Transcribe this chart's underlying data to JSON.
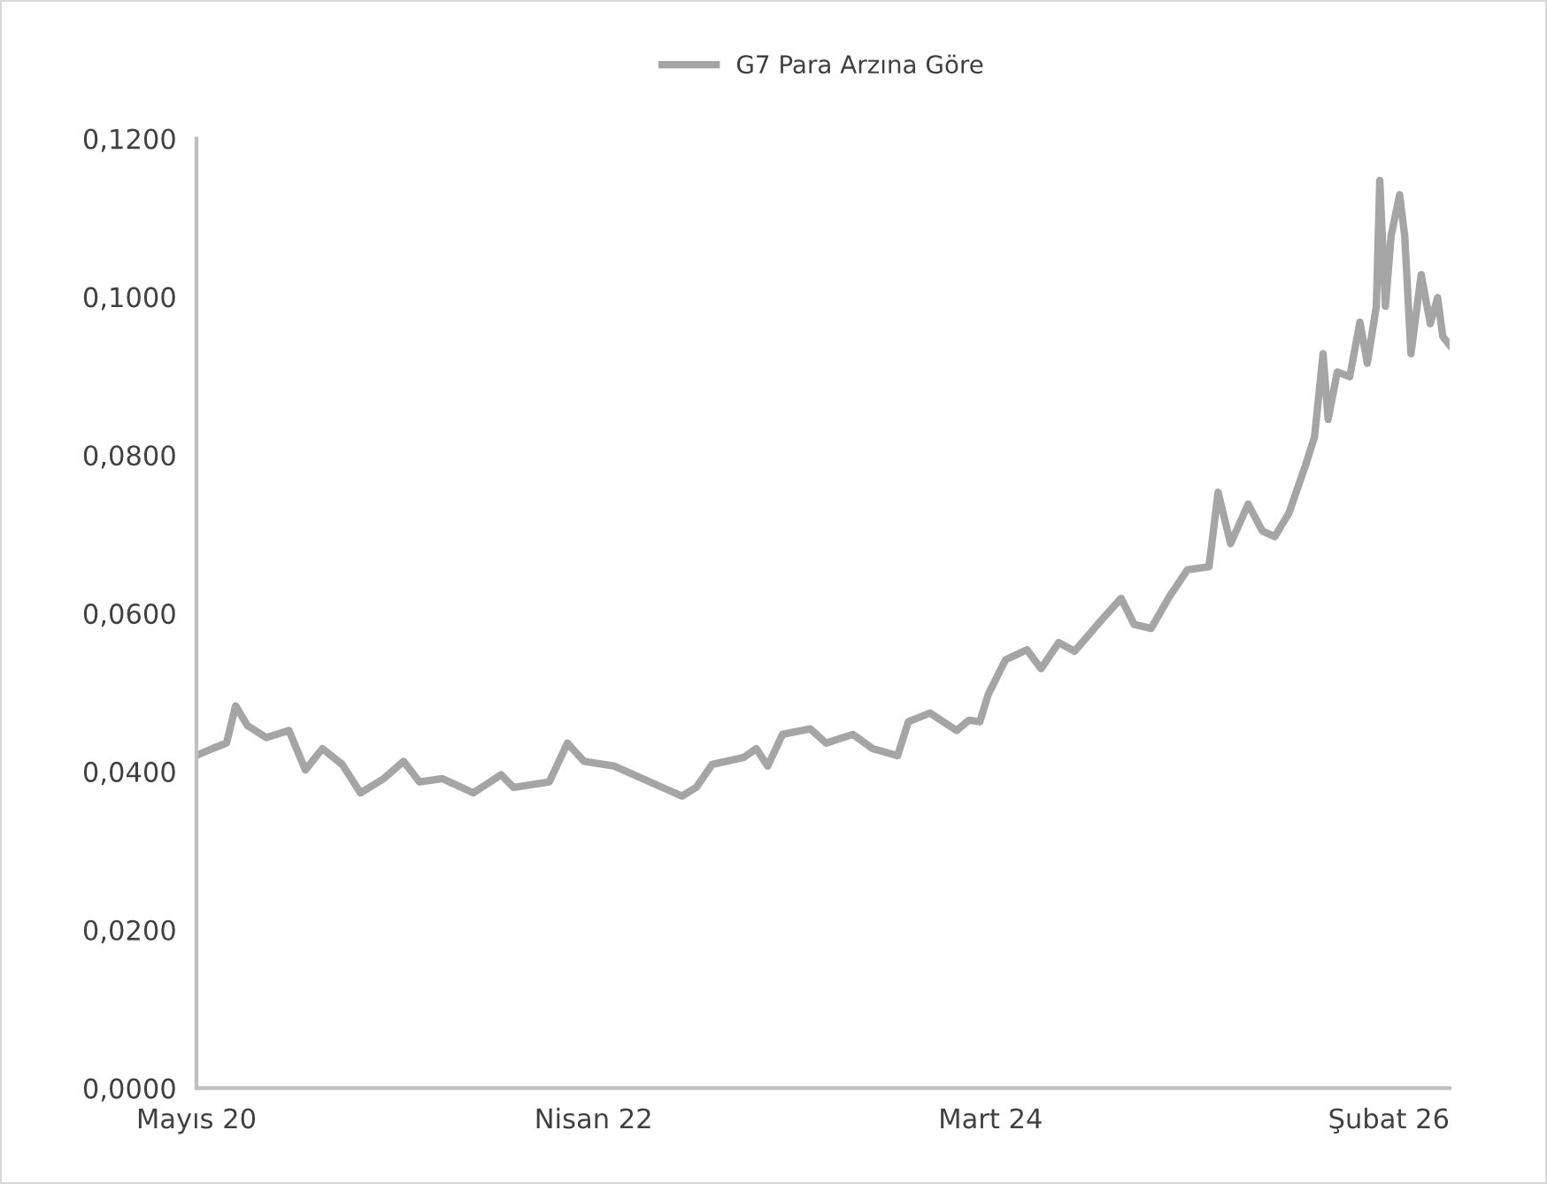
{
  "chart_data": {
    "type": "line",
    "legend": "top",
    "grid": false,
    "line_style": "solid",
    "marker": "none",
    "xlim": [
      "2020-05-01",
      "2026-05-19"
    ],
    "xticks": [
      {
        "value": "2020-05-01",
        "label": "Mayıs 20"
      },
      {
        "value": "2022-04-01",
        "label": "Nisan 22"
      },
      {
        "value": "2024-03-01",
        "label": "Mart 24"
      },
      {
        "value": "2026-02-01",
        "label": "Şubat 26"
      }
    ],
    "ylim": [
      0,
      0.12
    ],
    "yticks": [
      {
        "value": 0,
        "label": "0,0000"
      },
      {
        "value": 0.02,
        "label": "0,0200"
      },
      {
        "value": 0.04,
        "label": "0,0400"
      },
      {
        "value": 0.06,
        "label": "0,0600"
      },
      {
        "value": 0.08,
        "label": "0,0800"
      },
      {
        "value": 0.1,
        "label": "0,1000"
      },
      {
        "value": 0.12,
        "label": "0,1200"
      }
    ],
    "x": [
      "2020-05-03",
      "2020-05-29",
      "2020-06-23",
      "2020-07-09",
      "2020-07-30",
      "2020-09-01",
      "2020-10-11",
      "2020-11-09",
      "2020-12-09",
      "2021-01-13",
      "2021-02-14",
      "2021-03-27",
      "2021-05-01",
      "2021-05-29",
      "2021-07-09",
      "2021-09-01",
      "2021-10-20",
      "2021-11-11",
      "2022-01-13",
      "2022-02-14",
      "2022-03-15",
      "2022-05-07",
      "2022-07-09",
      "2022-09-04",
      "2022-09-29",
      "2022-10-27",
      "2022-12-22",
      "2023-01-13",
      "2023-02-02",
      "2023-02-28",
      "2023-04-18",
      "2023-05-16",
      "2023-07-02",
      "2023-08-06",
      "2023-09-19",
      "2023-10-08",
      "2023-11-15",
      "2024-01-01",
      "2024-01-23",
      "2024-02-11",
      "2024-02-26",
      "2024-03-27",
      "2024-05-04",
      "2024-05-29",
      "2024-06-29",
      "2024-07-27",
      "2024-09-13",
      "2024-10-17",
      "2024-11-09",
      "2024-12-09",
      "2025-01-10",
      "2025-02-11",
      "2025-03-21",
      "2025-04-06",
      "2025-04-28",
      "2025-05-29",
      "2025-06-23",
      "2025-07-15",
      "2025-08-09",
      "2025-09-07",
      "2025-09-23",
      "2025-10-08",
      "2025-10-17",
      "2025-11-02",
      "2025-11-24",
      "2025-12-12",
      "2025-12-25",
      "2026-01-10",
      "2026-01-16",
      "2026-01-26",
      "2026-02-05",
      "2026-02-20",
      "2026-03-01",
      "2026-03-12",
      "2026-03-30",
      "2026-04-15",
      "2026-04-28",
      "2026-05-07",
      "2026-05-19"
    ],
    "series": [
      {
        "name": "G7 Para Arzına Göre",
        "color": "#a5a5a5",
        "values": [
          0.0421,
          0.0429,
          0.0436,
          0.0483,
          0.0458,
          0.0443,
          0.0452,
          0.0402,
          0.0429,
          0.0409,
          0.0373,
          0.0391,
          0.0413,
          0.0387,
          0.0391,
          0.0373,
          0.0396,
          0.038,
          0.0387,
          0.0436,
          0.0413,
          0.0407,
          0.0387,
          0.0369,
          0.038,
          0.0409,
          0.0418,
          0.0429,
          0.0407,
          0.0447,
          0.0454,
          0.0436,
          0.0447,
          0.0429,
          0.042,
          0.0463,
          0.0474,
          0.0452,
          0.0465,
          0.0463,
          0.0498,
          0.0541,
          0.0554,
          0.053,
          0.0563,
          0.0552,
          0.0592,
          0.0619,
          0.0586,
          0.0581,
          0.0621,
          0.0655,
          0.0659,
          0.0753,
          0.0688,
          0.0738,
          0.0704,
          0.0697,
          0.0727,
          0.0787,
          0.0823,
          0.0928,
          0.0845,
          0.0905,
          0.0899,
          0.0968,
          0.0916,
          0.0988,
          0.1147,
          0.0988,
          0.1077,
          0.1129,
          0.1077,
          0.0928,
          0.1028,
          0.0966,
          0.0999,
          0.095,
          0.0939
        ]
      }
    ]
  }
}
